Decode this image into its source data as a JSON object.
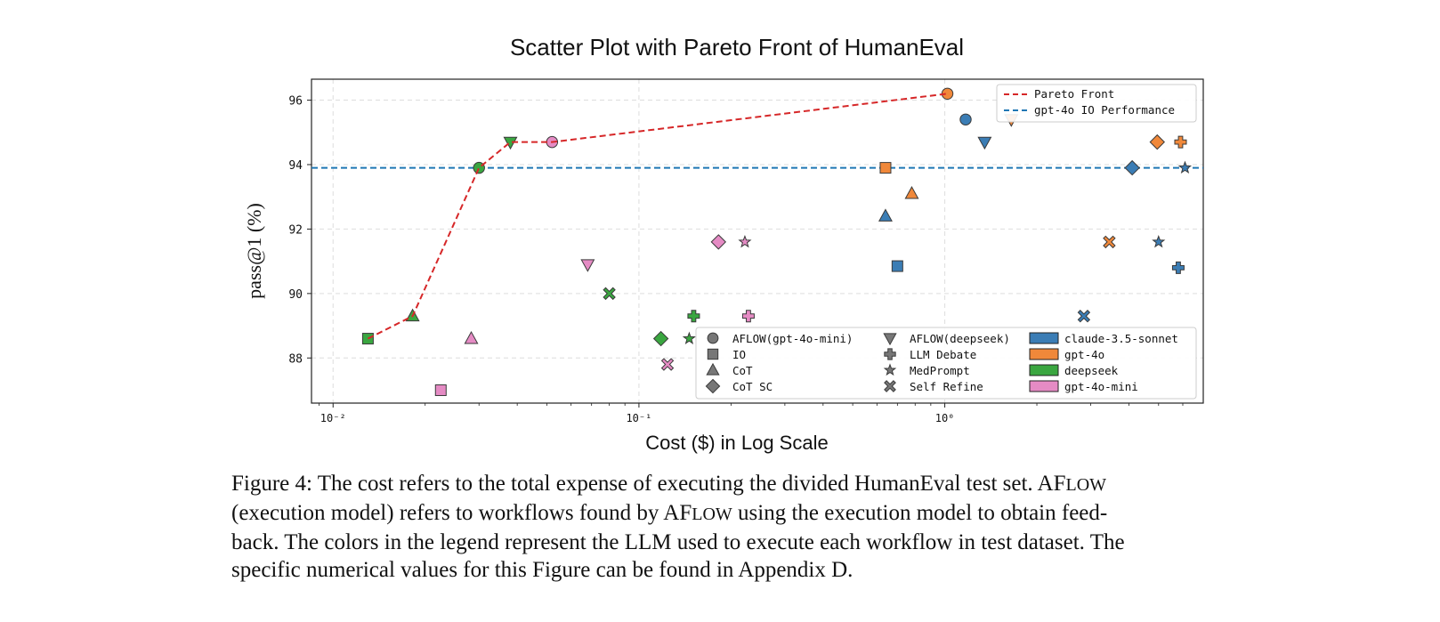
{
  "chart_data": {
    "type": "scatter",
    "title": "Scatter Plot with Pareto Front of HumanEval",
    "xlabel": "Cost ($) in Log Scale",
    "ylabel": "pass@1 (%)",
    "xscale": "log",
    "xlim": [
      0.0085,
      7.0
    ],
    "ylim": [
      86.6,
      96.65
    ],
    "x_tick_labels": [
      "10⁻²",
      "10⁻¹",
      "10⁰"
    ],
    "x_tick_values": [
      0.01,
      0.1,
      1
    ],
    "y_ticks": [
      88,
      90,
      92,
      94,
      96
    ],
    "grid": true,
    "colors": {
      "claude-3.5-sonnet": "#3b7db5",
      "gpt-4o": "#f0883a",
      "deepseek": "#3aa640",
      "gpt-4o-mini": "#e58bc4",
      "pareto": "#d62728",
      "baseline": "#1f77b4"
    },
    "points": [
      {
        "method": "AFLOW(gpt-4o-mini)",
        "model": "gpt-4o-mini",
        "x": 0.052,
        "y": 94.7
      },
      {
        "method": "AFLOW(gpt-4o-mini)",
        "model": "deepseek",
        "x": 0.03,
        "y": 93.9
      },
      {
        "method": "AFLOW(gpt-4o-mini)",
        "model": "gpt-4o",
        "x": 1.02,
        "y": 96.2
      },
      {
        "method": "AFLOW(gpt-4o-mini)",
        "model": "claude-3.5-sonnet",
        "x": 1.17,
        "y": 95.4
      },
      {
        "method": "AFLOW(deepseek)",
        "model": "deepseek",
        "x": 0.038,
        "y": 94.7
      },
      {
        "method": "AFLOW(deepseek)",
        "model": "gpt-4o-mini",
        "x": 0.068,
        "y": 90.9
      },
      {
        "method": "AFLOW(deepseek)",
        "model": "claude-3.5-sonnet",
        "x": 1.35,
        "y": 94.7
      },
      {
        "method": "AFLOW(deepseek)",
        "model": "gpt-4o",
        "x": 1.65,
        "y": 95.4
      },
      {
        "method": "IO",
        "model": "deepseek",
        "x": 0.013,
        "y": 88.6
      },
      {
        "method": "IO",
        "model": "gpt-4o-mini",
        "x": 0.0225,
        "y": 87.0
      },
      {
        "method": "IO",
        "model": "gpt-4o",
        "x": 0.64,
        "y": 93.9
      },
      {
        "method": "IO",
        "model": "claude-3.5-sonnet",
        "x": 0.7,
        "y": 90.85
      },
      {
        "method": "CoT",
        "model": "deepseek",
        "x": 0.0182,
        "y": 89.3
      },
      {
        "method": "CoT",
        "model": "gpt-4o-mini",
        "x": 0.0283,
        "y": 88.6
      },
      {
        "method": "CoT",
        "model": "claude-3.5-sonnet",
        "x": 0.64,
        "y": 92.4
      },
      {
        "method": "CoT",
        "model": "gpt-4o",
        "x": 0.78,
        "y": 93.1
      },
      {
        "method": "CoT SC",
        "model": "deepseek",
        "x": 0.118,
        "y": 88.6
      },
      {
        "method": "CoT SC",
        "model": "gpt-4o-mini",
        "x": 0.182,
        "y": 91.6
      },
      {
        "method": "CoT SC",
        "model": "claude-3.5-sonnet",
        "x": 4.1,
        "y": 93.9
      },
      {
        "method": "CoT SC",
        "model": "gpt-4o",
        "x": 4.95,
        "y": 94.7
      },
      {
        "method": "LLM Debate",
        "model": "deepseek",
        "x": 0.151,
        "y": 89.3
      },
      {
        "method": "LLM Debate",
        "model": "gpt-4o-mini",
        "x": 0.228,
        "y": 89.3
      },
      {
        "method": "LLM Debate",
        "model": "gpt-4o",
        "x": 5.9,
        "y": 94.7
      },
      {
        "method": "LLM Debate",
        "model": "claude-3.5-sonnet",
        "x": 5.8,
        "y": 90.8
      },
      {
        "method": "MedPrompt",
        "model": "deepseek",
        "x": 0.146,
        "y": 88.6
      },
      {
        "method": "MedPrompt",
        "model": "gpt-4o-mini",
        "x": 0.222,
        "y": 91.6
      },
      {
        "method": "MedPrompt",
        "model": "claude-3.5-sonnet",
        "x": 5.0,
        "y": 91.6
      },
      {
        "method": "MedPrompt",
        "model": "claude-3.5-sonnet",
        "x": 6.1,
        "y": 93.9
      },
      {
        "method": "Self Refine",
        "model": "deepseek",
        "x": 0.08,
        "y": 90.0
      },
      {
        "method": "Self Refine",
        "model": "gpt-4o-mini",
        "x": 0.124,
        "y": 87.8
      },
      {
        "method": "Self Refine",
        "model": "claude-3.5-sonnet",
        "x": 2.85,
        "y": 89.3
      },
      {
        "method": "Self Refine",
        "model": "gpt-4o",
        "x": 3.45,
        "y": 91.6
      }
    ],
    "pareto_front": {
      "name": "Pareto Front",
      "x": [
        0.013,
        0.0182,
        0.03,
        0.038,
        0.052,
        1.02
      ],
      "y": [
        88.6,
        89.3,
        93.9,
        94.7,
        94.7,
        96.2
      ]
    },
    "baseline": {
      "name": "gpt-4o IO Performance",
      "y": 93.9
    },
    "legend_top": {
      "placement": "top-right",
      "entries": [
        "Pareto Front",
        "gpt-4o IO Performance"
      ]
    },
    "legend_bottom": {
      "placement": "bottom-right",
      "shapes": [
        {
          "label": "AFLOW(gpt-4o-mini)",
          "marker": "circle"
        },
        {
          "label": "IO",
          "marker": "square"
        },
        {
          "label": "CoT",
          "marker": "triangle-up"
        },
        {
          "label": "CoT SC",
          "marker": "diamond"
        },
        {
          "label": "AFLOW(deepseek)",
          "marker": "triangle-down"
        },
        {
          "label": "LLM Debate",
          "marker": "plus"
        },
        {
          "label": "MedPrompt",
          "marker": "star"
        },
        {
          "label": "Self Refine",
          "marker": "x"
        }
      ],
      "models": [
        "claude-3.5-sonnet",
        "gpt-4o",
        "deepseek",
        "gpt-4o-mini"
      ]
    }
  },
  "caption": {
    "line1_a": "Figure 4: The cost refers to the total expense of executing the divided HumanEval test set. AF",
    "line1_b": "LOW",
    "line2_a": "(execution model) refers to workflows found by AF",
    "line2_b": "LOW",
    "line2_c": " using the execution model to obtain feed-",
    "line3": "back. The colors in the legend represent the LLM used to execute each workflow in test dataset. The",
    "line4": "specific numerical values for this Figure can be found in Appendix D."
  }
}
